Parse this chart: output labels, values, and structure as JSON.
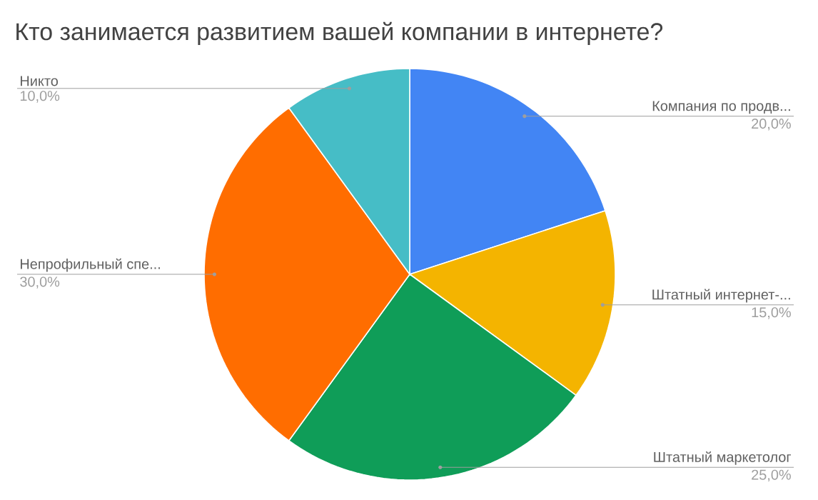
{
  "chart_data": {
    "type": "pie",
    "title": "Кто занимается развитием вашей компании в интернете?",
    "categories": [
      "Компания по продв...",
      "Штатный интернет-...",
      "Штатный маркетолог",
      "Непрофильный спе...",
      "Никто"
    ],
    "values": [
      20,
      15,
      25,
      30,
      10
    ],
    "colors": [
      "#4285f4",
      "#f4b400",
      "#0f9d58",
      "#ff6d00",
      "#46bdc6"
    ],
    "value_labels": [
      "20,0%",
      "15,0%",
      "25,0%",
      "30,0%",
      "10,0%"
    ]
  }
}
